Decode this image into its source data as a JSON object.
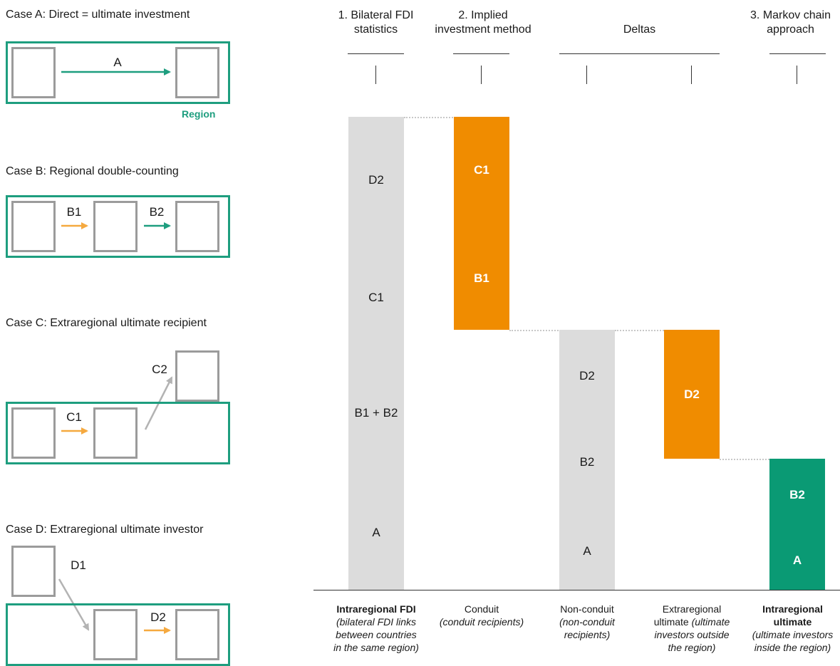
{
  "colors": {
    "region_green": "#1e9e7f",
    "orange": "#f08c00",
    "green_bar": "#0a9a74",
    "grey_bar": "#dcdcdc",
    "node_grey": "#9b9b9b",
    "arrow_orange": "#f5a93f",
    "arrow_grey": "#b3b3b3"
  },
  "cases": {
    "a": {
      "title": "Case A: Direct = ultimate investment",
      "arrow": "A",
      "region": "Region"
    },
    "b": {
      "title": "Case B: Regional double-counting",
      "arrow1": "B1",
      "arrow2": "B2"
    },
    "c": {
      "title": "Case C: Extraregional ultimate recipient",
      "arrow1": "C1",
      "arrow2": "C2"
    },
    "d": {
      "title": "Case D: Extraregional ultimate investor",
      "arrow1": "D1",
      "arrow2": "D2"
    }
  },
  "columns": {
    "c1_head": [
      "1. Bilateral FDI",
      "statistics"
    ],
    "c2_head": [
      "2. Implied",
      "investment method"
    ],
    "deltas_head": "Deltas",
    "c5_head": [
      "3. Markov chain",
      "approach"
    ]
  },
  "bars": {
    "bar1": [
      "D2",
      "C1",
      "B1 + B2",
      "A"
    ],
    "bar2": [
      "C1",
      "B1"
    ],
    "bar3": [
      "D2",
      "B2",
      "A"
    ],
    "bar4": [
      "D2"
    ],
    "bar5": [
      "B2",
      "A"
    ]
  },
  "captions": {
    "c1": {
      "bold": "Intraregional FDI",
      "italic": [
        "(bilateral FDI links",
        "between countries",
        "in the same region)"
      ]
    },
    "c2": {
      "plain": "Conduit",
      "italic": [
        "(conduit recipients)"
      ]
    },
    "c3": {
      "plain": "Non-conduit",
      "italic": [
        "(non-conduit",
        "recipients)"
      ]
    },
    "c4": {
      "plain": "Extraregional",
      "plain2": "ultimate ",
      "italic_inline": "(ultimate",
      "italic": [
        "investors outside",
        "the region)"
      ]
    },
    "c5": {
      "bold": [
        "Intraregional",
        "ultimate"
      ],
      "italic": [
        "(ultimate investors",
        "inside the region)"
      ]
    }
  }
}
